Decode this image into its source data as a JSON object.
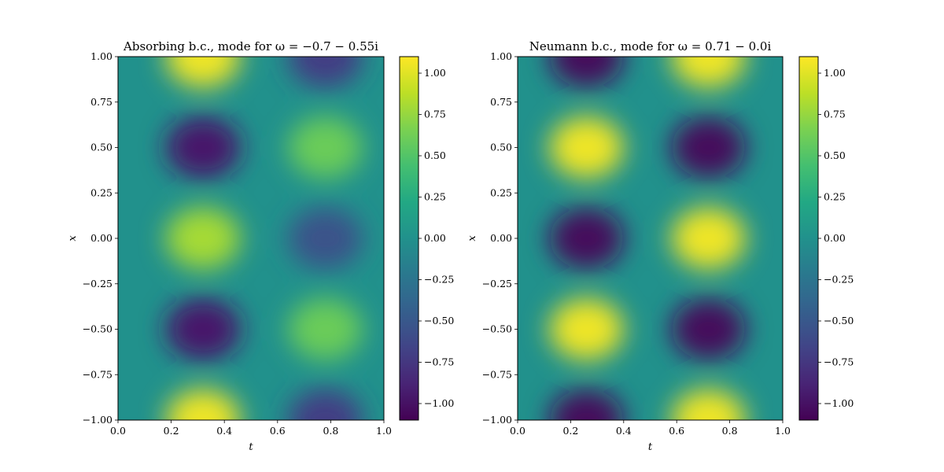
{
  "chart_data": [
    {
      "type": "heatmap",
      "title": "Absorbing b.c., mode for ω = −0.7 − 0.55i",
      "xlabel": "t",
      "ylabel": "x",
      "xlim": [
        0.0,
        1.0
      ],
      "ylim": [
        -1.0,
        1.0
      ],
      "xticks": [
        "0.0",
        "0.2",
        "0.4",
        "0.6",
        "0.8",
        "1.0"
      ],
      "yticks": [
        "−1.00",
        "−0.75",
        "−0.50",
        "−0.25",
        "0.00",
        "0.25",
        "0.50",
        "0.75",
        "1.00"
      ],
      "colorbar": {
        "range": [
          -1.1,
          1.1
        ],
        "ticks": [
          "−1.00",
          "−0.75",
          "−0.50",
          "−0.25",
          "0.00",
          "0.25",
          "0.50",
          "0.75",
          "1.00"
        ],
        "colormap": "viridis"
      },
      "features": [
        {
          "t": 0.32,
          "x": 1.0,
          "value": 1.05
        },
        {
          "t": 0.32,
          "x": 0.5,
          "value": -0.95
        },
        {
          "t": 0.32,
          "x": 0.0,
          "value": 0.8
        },
        {
          "t": 0.32,
          "x": -0.5,
          "value": -0.95
        },
        {
          "t": 0.32,
          "x": -1.0,
          "value": 1.05
        },
        {
          "t": 0.78,
          "x": 1.0,
          "value": -0.7
        },
        {
          "t": 0.78,
          "x": 0.5,
          "value": 0.6
        },
        {
          "t": 0.78,
          "x": 0.0,
          "value": -0.55
        },
        {
          "t": 0.78,
          "x": -0.5,
          "value": 0.6
        },
        {
          "t": 0.78,
          "x": -1.0,
          "value": -0.7
        }
      ]
    },
    {
      "type": "heatmap",
      "title": "Neumann b.c., mode for ω = 0.71 − 0.0i",
      "xlabel": "t",
      "ylabel": "x",
      "xlim": [
        0.0,
        1.0
      ],
      "ylim": [
        -1.0,
        1.0
      ],
      "xticks": [
        "0.0",
        "0.2",
        "0.4",
        "0.6",
        "0.8",
        "1.0"
      ],
      "yticks": [
        "−1.00",
        "−0.75",
        "−0.50",
        "−0.25",
        "0.00",
        "0.25",
        "0.50",
        "0.75",
        "1.00"
      ],
      "colorbar": {
        "range": [
          -1.1,
          1.1
        ],
        "ticks": [
          "−1.00",
          "−0.75",
          "−0.50",
          "−0.25",
          "0.00",
          "0.25",
          "0.50",
          "0.75",
          "1.00"
        ],
        "colormap": "viridis"
      },
      "features": [
        {
          "t": 0.26,
          "x": 1.0,
          "value": -1.05
        },
        {
          "t": 0.26,
          "x": 0.5,
          "value": 1.05
        },
        {
          "t": 0.26,
          "x": 0.0,
          "value": -1.05
        },
        {
          "t": 0.26,
          "x": -0.5,
          "value": 1.05
        },
        {
          "t": 0.26,
          "x": -1.0,
          "value": -1.05
        },
        {
          "t": 0.72,
          "x": 1.0,
          "value": 1.05
        },
        {
          "t": 0.72,
          "x": 0.5,
          "value": -1.05
        },
        {
          "t": 0.72,
          "x": 0.0,
          "value": 1.05
        },
        {
          "t": 0.72,
          "x": -0.5,
          "value": -1.05
        },
        {
          "t": 0.72,
          "x": -1.0,
          "value": 1.05
        }
      ]
    }
  ]
}
